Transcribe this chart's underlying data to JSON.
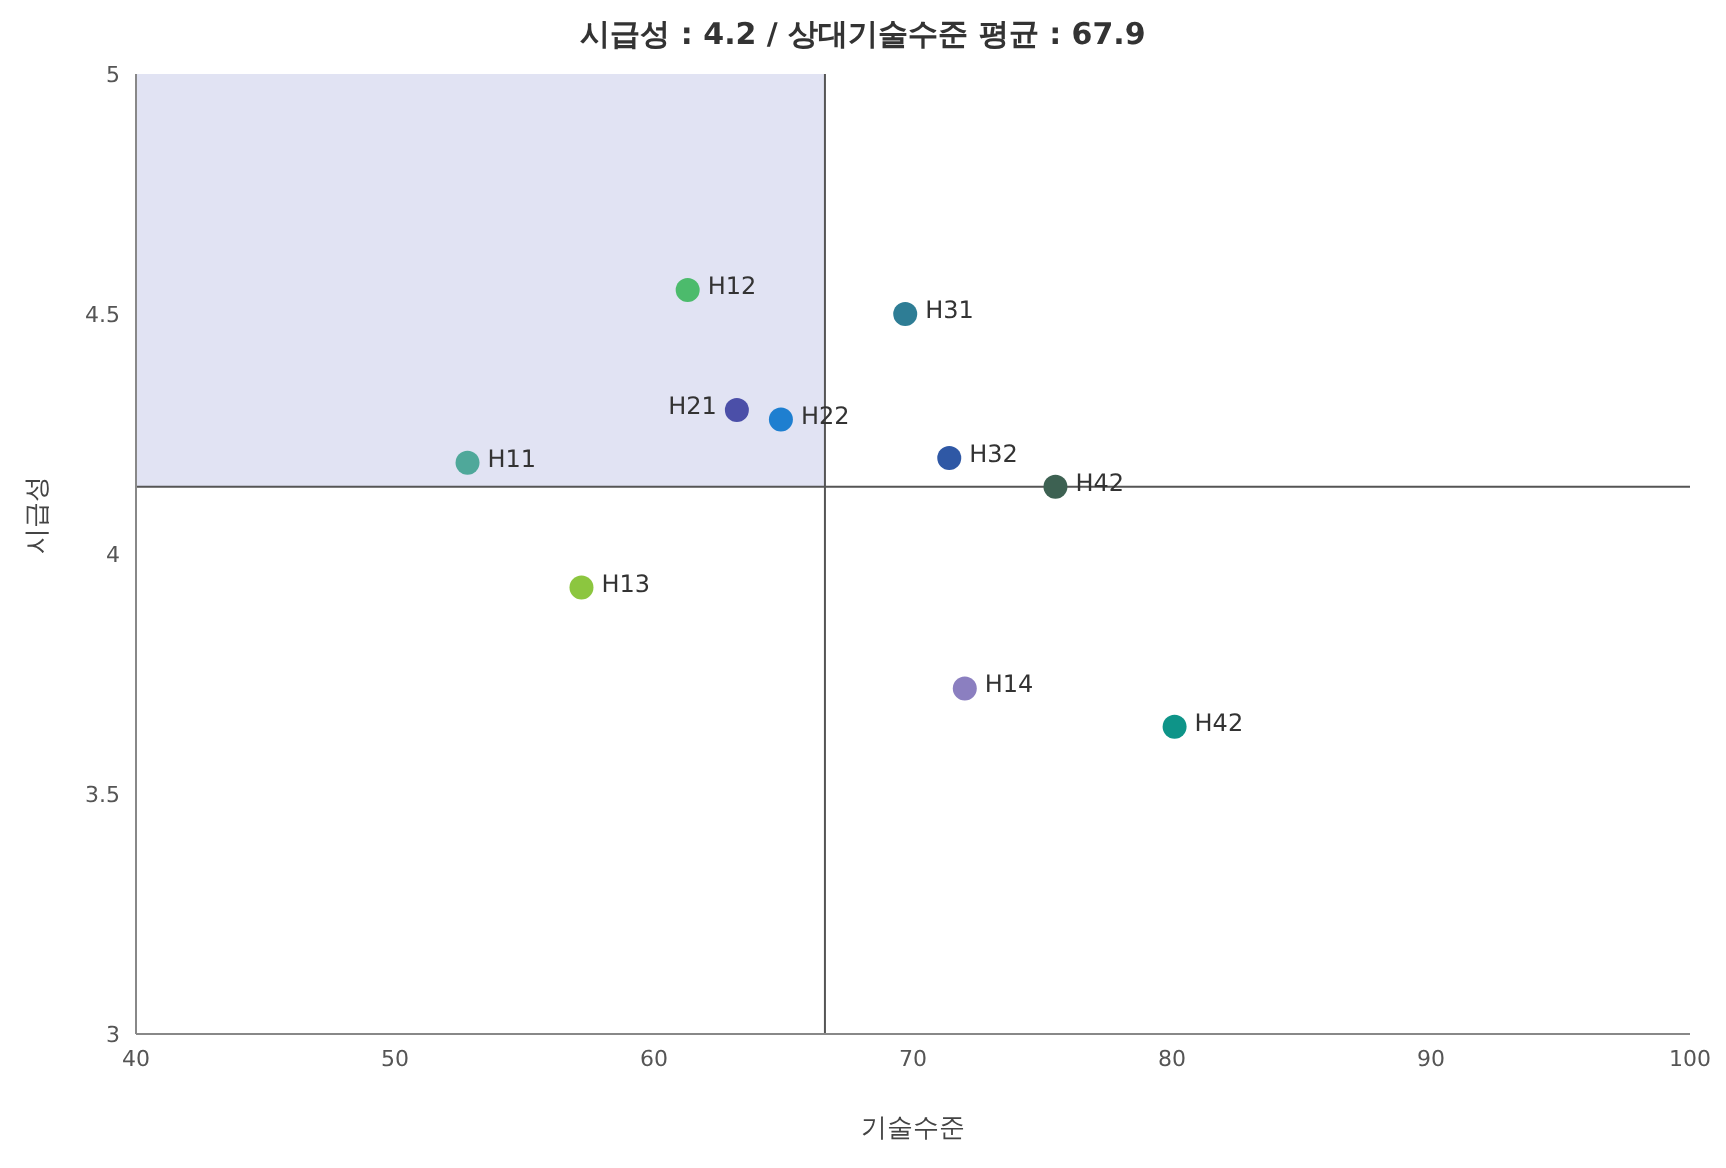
{
  "chart_data": {
    "type": "scatter",
    "title": "시급성 : 4.2 / 상대기술수준 평균 : 67.9",
    "xlabel": "기술수준",
    "ylabel": "시급성",
    "xlim": [
      40,
      100
    ],
    "xticks": [
      40,
      50,
      60,
      70,
      80,
      90,
      100
    ],
    "ylim": [
      3,
      5
    ],
    "yticks": [
      3,
      3.5,
      4,
      4.5,
      5
    ],
    "marker": "circle",
    "series": [
      {
        "name": "H12",
        "color": "#4cbb6c",
        "x": [
          61.3
        ],
        "values": [
          4.55
        ]
      },
      {
        "name": "H31",
        "color": "#2e7d95",
        "x": [
          69.7
        ],
        "values": [
          4.5
        ]
      },
      {
        "name": "H21",
        "color": "#4b4fa8",
        "x": [
          63.2
        ],
        "values": [
          4.3
        ]
      },
      {
        "name": "H22",
        "color": "#1e7fd0",
        "x": [
          64.9
        ],
        "values": [
          4.28
        ]
      },
      {
        "name": "H11",
        "color": "#4fa89a",
        "x": [
          52.8
        ],
        "values": [
          4.19
        ]
      },
      {
        "name": "H32",
        "color": "#2f58a5",
        "x": [
          71.4
        ],
        "values": [
          4.2
        ]
      },
      {
        "name": "H42",
        "color": "#3d6152",
        "x": [
          75.5
        ],
        "values": [
          4.14
        ]
      },
      {
        "name": "H13",
        "color": "#8cc63f",
        "x": [
          57.2
        ],
        "values": [
          3.93
        ]
      },
      {
        "name": "H14",
        "color": "#8b7fc0",
        "x": [
          72
        ],
        "values": [
          3.72
        ]
      },
      {
        "name": "H42",
        "color": "#0e9488",
        "x": [
          80.1
        ],
        "values": [
          3.64
        ]
      }
    ],
    "ref_lines": [
      {
        "axis": "x",
        "value": 66.6,
        "color": "#555555"
      },
      {
        "axis": "y",
        "value": 4.14,
        "color": "#555555"
      }
    ],
    "bands": [
      {
        "axis": "y",
        "from": 4.14,
        "to": 5,
        "color": "#e1e3f3"
      }
    ]
  }
}
